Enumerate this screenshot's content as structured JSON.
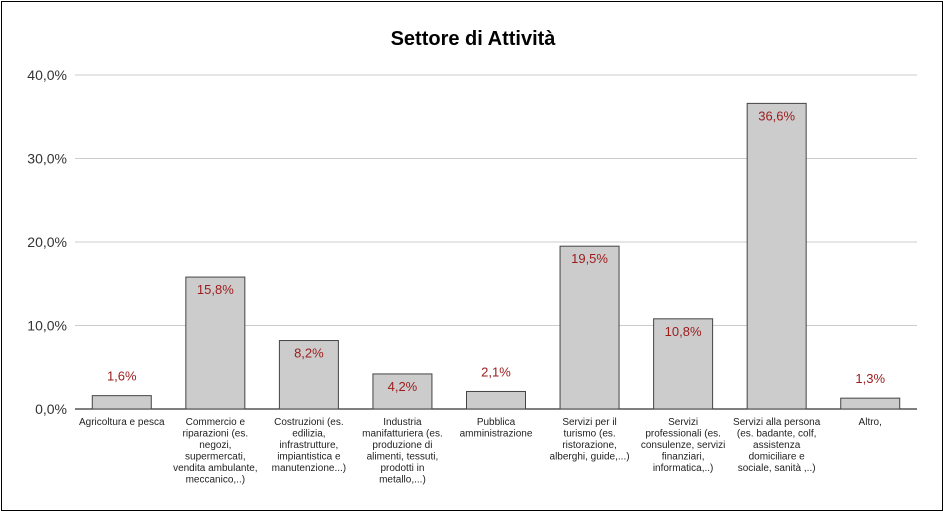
{
  "chart_data": {
    "type": "bar",
    "title": "Settore di Attività",
    "xlabel": "",
    "ylabel": "",
    "ylim": [
      0,
      40
    ],
    "yticks": [
      "0,0%",
      "10,0%",
      "20,0%",
      "30,0%",
      "40,0%"
    ],
    "grid": true,
    "legend": "none",
    "categories": [
      "Agricoltura e pesca",
      "Commercio e riparazioni (es. negozi, supermercati, vendita ambulante, meccanico,..)",
      "Costruzioni (es. edilizia, infrastrutture, impiantistica e manutenzione...)",
      "Industria manifatturiera (es. produzione di alimenti, tessuti, prodotti in metallo,...)",
      "Pubblica amministrazione",
      "Servizi per il turismo (es. ristorazione, alberghi, guide,...)",
      "Servizi professionali (es. consulenze, servizi finanziari, informatica,..)",
      "Servizi alla persona (es. badante, colf, assistenza domiciliare e sociale, sanità ,..)",
      "Altro,"
    ],
    "category_lines": [
      [
        "Agricoltura e pesca"
      ],
      [
        "Commercio e",
        "riparazioni (es.",
        "negozi,",
        "supermercati,",
        "vendita ambulante,",
        "meccanico,..)"
      ],
      [
        "Costruzioni (es.",
        "edilizia,",
        "infrastrutture,",
        "impiantistica e",
        "manutenzione...)"
      ],
      [
        "Industria",
        "manifatturiera (es.",
        "produzione di",
        "alimenti, tessuti,",
        "prodotti in",
        "metallo,...)"
      ],
      [
        "Pubblica",
        "amministrazione"
      ],
      [
        "Servizi per il",
        "turismo (es.",
        "ristorazione,",
        "alberghi, guide,...)"
      ],
      [
        "Servizi",
        "professionali (es.",
        "consulenze, servizi",
        "finanziari,",
        "informatica,..)"
      ],
      [
        "Servizi alla persona",
        "(es. badante, colf,",
        "assistenza",
        "domiciliare e",
        "sociale, sanità ,..)"
      ],
      [
        "Altro,"
      ]
    ],
    "values": [
      1.6,
      15.8,
      8.2,
      4.2,
      2.1,
      19.5,
      10.8,
      36.6,
      1.3
    ],
    "data_labels": [
      "1,6%",
      "15,8%",
      "8,2%",
      "4,2%",
      "2,1%",
      "19,5%",
      "10,8%",
      "36,6%",
      "1,3%"
    ],
    "colors": {
      "bar_fill": "#cccccc",
      "bar_stroke": "#444444",
      "data_label": "#9c1b1b",
      "grid": "#cccccc"
    }
  }
}
